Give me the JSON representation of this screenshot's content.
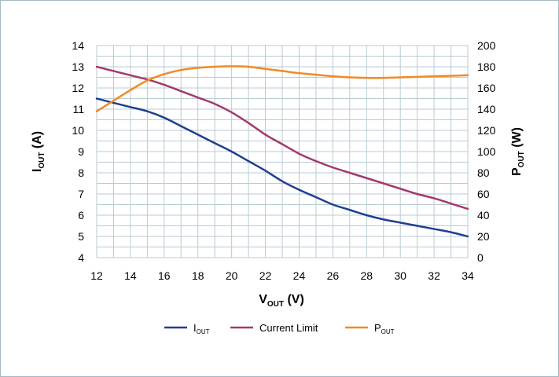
{
  "chart_data": {
    "type": "line",
    "title": "",
    "xlabel": {
      "main": "V",
      "sub": "OUT",
      "tail": " (V)"
    },
    "ylabel_left": {
      "main": "I",
      "sub": "OUT",
      "tail": " (A)"
    },
    "ylabel_right": {
      "main": "P",
      "sub": "OUT",
      "tail": " (W)"
    },
    "xlim": [
      12,
      34
    ],
    "ylim_left": [
      4,
      14
    ],
    "ylim_right": [
      0,
      200
    ],
    "x_ticks": [
      12,
      14,
      16,
      18,
      20,
      22,
      24,
      26,
      28,
      30,
      32,
      34
    ],
    "y_left_ticks": [
      4,
      5,
      6,
      7,
      8,
      9,
      10,
      11,
      12,
      13,
      14
    ],
    "y_right_ticks": [
      0,
      20,
      40,
      60,
      80,
      100,
      120,
      140,
      160,
      180,
      200
    ],
    "grid": true,
    "legend_position": "bottom",
    "series": [
      {
        "key": "iout",
        "name": {
          "main": "I",
          "sub": "OUT"
        },
        "axis": "left",
        "color": "#1f3f8f",
        "x": [
          12,
          13,
          14,
          15,
          16,
          17,
          18,
          19,
          20,
          21,
          22,
          23,
          24,
          25,
          26,
          27,
          28,
          29,
          30,
          31,
          32,
          33,
          34
        ],
        "y": [
          11.5,
          11.3,
          11.1,
          10.9,
          10.6,
          10.2,
          9.8,
          9.4,
          9.0,
          8.55,
          8.1,
          7.6,
          7.2,
          6.85,
          6.5,
          6.25,
          6.0,
          5.8,
          5.65,
          5.5,
          5.35,
          5.2,
          5.0
        ]
      },
      {
        "key": "current_limit",
        "name": {
          "main": "Current Limit",
          "sub": ""
        },
        "axis": "left",
        "color": "#a4386e",
        "x": [
          12,
          13,
          14,
          15,
          16,
          17,
          18,
          19,
          20,
          21,
          22,
          23,
          24,
          25,
          26,
          27,
          28,
          29,
          30,
          31,
          32,
          33,
          34
        ],
        "y": [
          13.0,
          12.8,
          12.6,
          12.4,
          12.15,
          11.85,
          11.55,
          11.25,
          10.85,
          10.35,
          9.8,
          9.35,
          8.9,
          8.55,
          8.25,
          8.0,
          7.75,
          7.5,
          7.25,
          7.0,
          6.8,
          6.55,
          6.3
        ]
      },
      {
        "key": "pout",
        "name": {
          "main": "P",
          "sub": "OUT"
        },
        "axis": "right",
        "color": "#f08a24",
        "x": [
          12,
          13,
          14,
          15,
          16,
          17,
          18,
          19,
          20,
          21,
          22,
          23,
          24,
          25,
          26,
          27,
          28,
          29,
          30,
          31,
          32,
          33,
          34
        ],
        "y": [
          138,
          148,
          158,
          167,
          173,
          177,
          179,
          180,
          180.5,
          180,
          178,
          176,
          174,
          172.5,
          171,
          170,
          169.5,
          169.5,
          170,
          170.5,
          171,
          171.5,
          172
        ]
      }
    ]
  }
}
